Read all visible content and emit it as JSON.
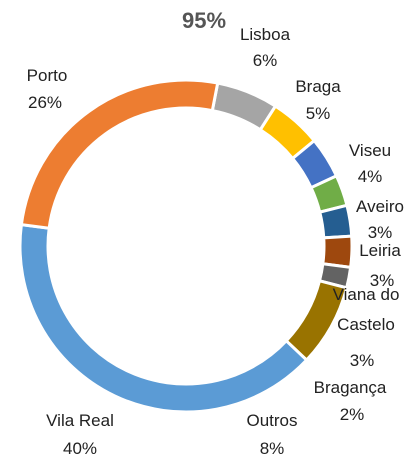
{
  "chart_data": {
    "type": "donut",
    "title": "95%",
    "categories": [
      "Lisboa",
      "Braga",
      "Viseu",
      "Aveiro",
      "Leiria",
      "Viana do Castelo",
      "Bragança",
      "Outros",
      "Vila Real",
      "Porto"
    ],
    "values": [
      6,
      5,
      4,
      3,
      3,
      3,
      2,
      8,
      40,
      26
    ],
    "value_labels": [
      "6%",
      "5%",
      "4%",
      "3%",
      "3%",
      "3%",
      "2%",
      "8%",
      "40%",
      "26%"
    ],
    "colors": [
      "#a5a5a5",
      "#ffc000",
      "#4472c4",
      "#70ad47",
      "#255e91",
      "#9e480e",
      "#636363",
      "#997300",
      "#5b9bd5",
      "#ed7d31"
    ]
  }
}
